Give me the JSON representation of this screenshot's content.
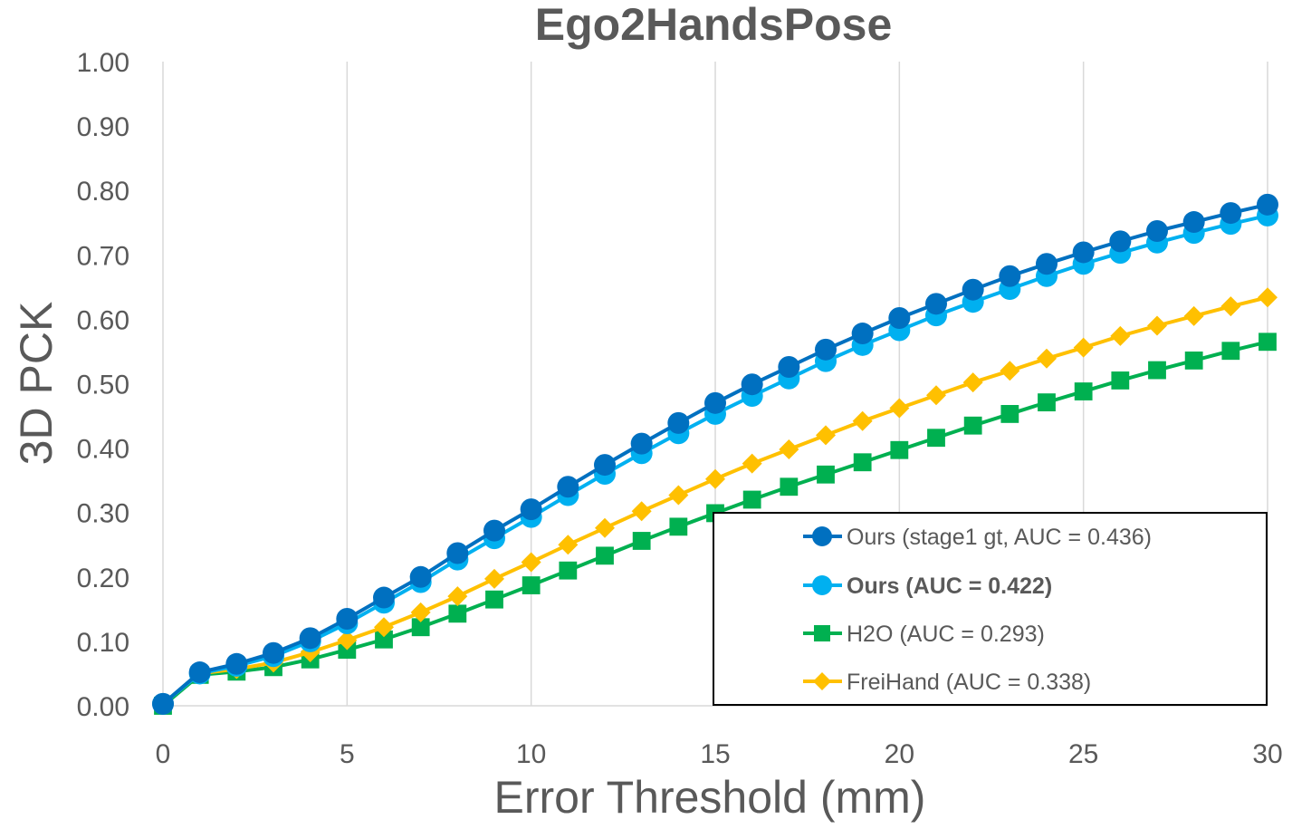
{
  "chart_data": {
    "type": "line",
    "title": "Ego2HandsPose",
    "xlabel": "Error Threshold (mm)",
    "ylabel": "3D PCK",
    "xlim": [
      0,
      30
    ],
    "ylim": [
      0,
      1
    ],
    "x_ticks": [
      "0",
      "5",
      "10",
      "15",
      "20",
      "25",
      "30"
    ],
    "y_ticks": [
      "0.00",
      "0.10",
      "0.20",
      "0.30",
      "0.40",
      "0.50",
      "0.60",
      "0.70",
      "0.80",
      "0.90",
      "1.00"
    ],
    "grid": "vertical",
    "legend_position": "bottom-right",
    "x": [
      0,
      1,
      2,
      3,
      4,
      5,
      6,
      7,
      8,
      9,
      10,
      11,
      12,
      13,
      14,
      15,
      16,
      17,
      18,
      19,
      20,
      21,
      22,
      23,
      24,
      25,
      26,
      27,
      28,
      29,
      30
    ],
    "series": [
      {
        "name": "Ours (stage1 gt, AUC = 0.436)",
        "color": "#0070c0",
        "marker": "circle",
        "bold_label": false,
        "values": [
          0.003,
          0.052,
          0.065,
          0.082,
          0.105,
          0.135,
          0.168,
          0.2,
          0.237,
          0.272,
          0.305,
          0.34,
          0.374,
          0.407,
          0.439,
          0.47,
          0.499,
          0.526,
          0.553,
          0.578,
          0.602,
          0.624,
          0.646,
          0.667,
          0.686,
          0.704,
          0.721,
          0.737,
          0.751,
          0.765,
          0.778
        ]
      },
      {
        "name": "Ours (AUC = 0.422)",
        "color": "#00b0f0",
        "marker": "circle",
        "bold_label": true,
        "values": [
          0.003,
          0.05,
          0.062,
          0.077,
          0.1,
          0.128,
          0.16,
          0.192,
          0.227,
          0.26,
          0.293,
          0.327,
          0.36,
          0.392,
          0.423,
          0.453,
          0.481,
          0.508,
          0.535,
          0.56,
          0.583,
          0.606,
          0.627,
          0.647,
          0.667,
          0.686,
          0.703,
          0.719,
          0.734,
          0.748,
          0.761
        ]
      },
      {
        "name": "H2O (AUC = 0.293)",
        "color": "#00b050",
        "marker": "square",
        "bold_label": false,
        "values": [
          0.0,
          0.048,
          0.053,
          0.06,
          0.072,
          0.087,
          0.103,
          0.122,
          0.143,
          0.165,
          0.187,
          0.21,
          0.233,
          0.256,
          0.278,
          0.299,
          0.32,
          0.34,
          0.359,
          0.378,
          0.397,
          0.416,
          0.435,
          0.453,
          0.471,
          0.488,
          0.505,
          0.521,
          0.536,
          0.551,
          0.565
        ]
      },
      {
        "name": "FreiHand (AUC = 0.338)",
        "color": "#ffc000",
        "marker": "diamond",
        "bold_label": false,
        "values": [
          0.003,
          0.05,
          0.057,
          0.067,
          0.083,
          0.102,
          0.122,
          0.145,
          0.17,
          0.197,
          0.223,
          0.25,
          0.276,
          0.302,
          0.327,
          0.352,
          0.376,
          0.398,
          0.42,
          0.442,
          0.462,
          0.482,
          0.502,
          0.52,
          0.539,
          0.556,
          0.574,
          0.59,
          0.605,
          0.62,
          0.634
        ]
      }
    ]
  }
}
